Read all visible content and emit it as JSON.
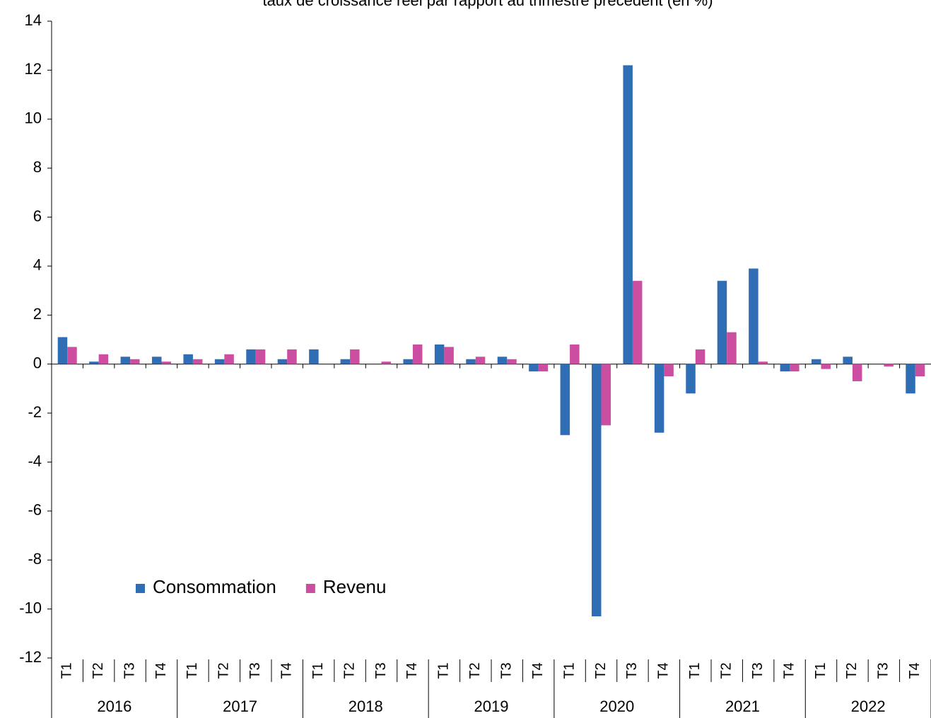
{
  "chart_data": {
    "type": "bar",
    "title": "taux de croissance réel par rapport au trimestre précédent (en %)",
    "categories": [
      "T1",
      "T2",
      "T3",
      "T4",
      "T1",
      "T2",
      "T3",
      "T4",
      "T1",
      "T2",
      "T3",
      "T4",
      "T1",
      "T2",
      "T3",
      "T4",
      "T1",
      "T2",
      "T3",
      "T4",
      "T1",
      "T2",
      "T3",
      "T4",
      "T1",
      "T2",
      "T3",
      "T4"
    ],
    "years": [
      "2016",
      "2017",
      "2018",
      "2019",
      "2020",
      "2021",
      "2022"
    ],
    "series": [
      {
        "name": "Consommation",
        "color": "#2f6db5",
        "values": [
          1.1,
          0.1,
          0.3,
          0.3,
          0.4,
          0.2,
          0.6,
          0.2,
          0.6,
          0.2,
          0.0,
          0.2,
          0.8,
          0.2,
          0.3,
          -0.3,
          -2.9,
          -10.3,
          12.2,
          -2.8,
          -1.2,
          3.4,
          3.9,
          -0.3,
          0.2,
          0.3,
          0.0,
          -1.2
        ]
      },
      {
        "name": "Revenu",
        "color": "#cc4ea0",
        "values": [
          0.7,
          0.4,
          0.2,
          0.1,
          0.2,
          0.4,
          0.6,
          0.6,
          0.0,
          0.6,
          0.1,
          0.8,
          0.7,
          0.3,
          0.2,
          -0.3,
          0.8,
          -2.5,
          3.4,
          -0.5,
          0.6,
          1.3,
          0.1,
          -0.3,
          -0.2,
          -0.7,
          -0.1,
          -0.5
        ]
      }
    ],
    "ylim": [
      -12,
      14
    ],
    "yticks": [
      -12,
      -10,
      -8,
      -6,
      -4,
      -2,
      0,
      2,
      4,
      6,
      8,
      10,
      12,
      14
    ],
    "legend": "lower left"
  }
}
